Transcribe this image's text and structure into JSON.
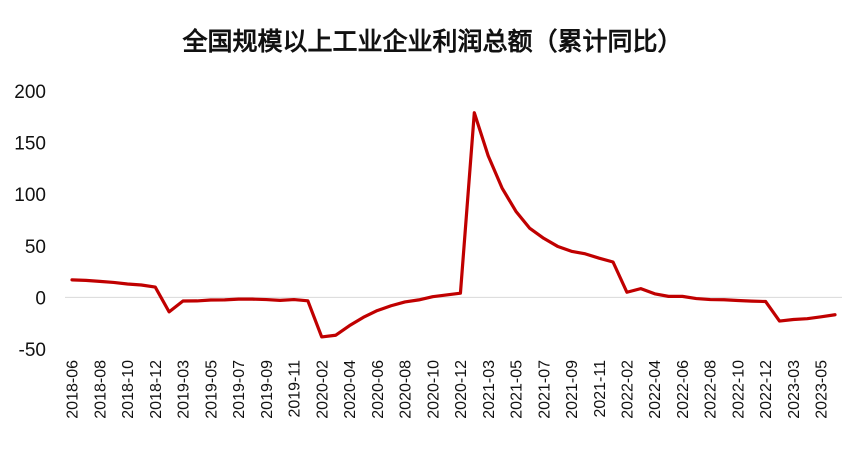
{
  "chart_data": {
    "type": "line",
    "title": "全国规模以上工业企业利润总额（累计同比）",
    "xlabel": "",
    "ylabel": "",
    "ylim": [
      -50,
      200
    ],
    "yticks": [
      -50,
      0,
      50,
      100,
      150,
      200
    ],
    "grid": false,
    "legend": "none",
    "line_color": "#C00000",
    "xtick_labels": [
      "2018-06",
      "2018-08",
      "2018-10",
      "2018-12",
      "2019-03",
      "2019-05",
      "2019-07",
      "2019-09",
      "2019-11",
      "2020-02",
      "2020-04",
      "2020-06",
      "2020-08",
      "2020-10",
      "2020-12",
      "2021-03",
      "2021-05",
      "2021-07",
      "2021-09",
      "2021-11",
      "2022-02",
      "2022-04",
      "2022-06",
      "2022-08",
      "2022-10",
      "2022-12",
      "2023-03",
      "2023-05"
    ],
    "x": [
      "2018-06",
      "2018-07",
      "2018-08",
      "2018-09",
      "2018-10",
      "2018-11",
      "2018-12",
      "2019-02",
      "2019-03",
      "2019-04",
      "2019-05",
      "2019-06",
      "2019-07",
      "2019-08",
      "2019-09",
      "2019-10",
      "2019-11",
      "2019-12",
      "2020-02",
      "2020-03",
      "2020-04",
      "2020-05",
      "2020-06",
      "2020-07",
      "2020-08",
      "2020-09",
      "2020-10",
      "2020-11",
      "2020-12",
      "2021-02",
      "2021-03",
      "2021-04",
      "2021-05",
      "2021-06",
      "2021-07",
      "2021-08",
      "2021-09",
      "2021-10",
      "2021-11",
      "2021-12",
      "2022-02",
      "2022-03",
      "2022-04",
      "2022-05",
      "2022-06",
      "2022-07",
      "2022-08",
      "2022-09",
      "2022-10",
      "2022-11",
      "2022-12",
      "2023-02",
      "2023-03",
      "2023-04",
      "2023-05",
      "2023-06"
    ],
    "series": [
      {
        "values": [
          17,
          16.5,
          15.5,
          14.5,
          13,
          12,
          10,
          -14,
          -3.5,
          -3.4,
          -2.5,
          -2.4,
          -1.7,
          -1.7,
          -2.1,
          -2.9,
          -2.1,
          -3.3,
          -38.3,
          -36.7,
          -27.4,
          -19.3,
          -12.8,
          -8.1,
          -4.4,
          -2.4,
          0.7,
          2.4,
          4.1,
          178.9,
          137.3,
          106,
          83.4,
          66.9,
          57.3,
          49.5,
          44.7,
          42.2,
          38,
          34.3,
          5,
          8.5,
          3.5,
          1,
          1,
          -1.1,
          -2.1,
          -2.3,
          -3,
          -3.6,
          -4,
          -22.9,
          -21.4,
          -20.6,
          -18.8,
          -16.8
        ]
      }
    ]
  }
}
